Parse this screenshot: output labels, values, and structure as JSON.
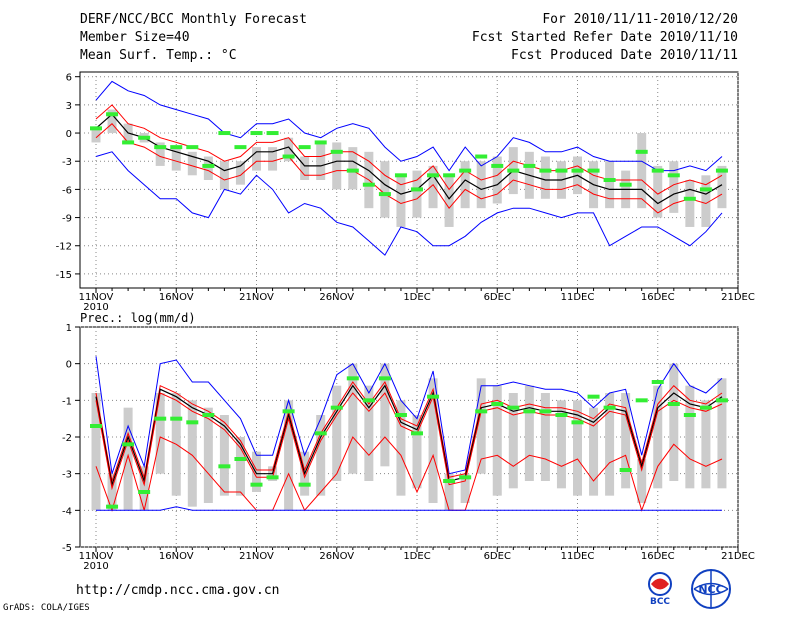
{
  "header": {
    "title": "DERF/NCC/BCC Monthly Forecast",
    "member_size": "Member Size=40",
    "variable": "Mean Surf. Temp.: °C",
    "period": "For 2010/11/11-2010/12/20",
    "started": "Fcst Started Refer Date 2010/11/10",
    "produced": "Fcst Produced Date 2010/11/11"
  },
  "footer": {
    "url": "http://cmdp.ncc.cma.gov.cn",
    "credit": "GrADS: COLA/IGES"
  },
  "logos": {
    "left_text": "BCC",
    "right_text": "NCC"
  },
  "colors": {
    "max": "#0000ff",
    "spread": "#ff0000",
    "mean": "#000000",
    "box": "#cccccc",
    "obs": "#33ee33",
    "grid": "#888888"
  },
  "chart_data": [
    {
      "type": "line",
      "title": "Mean Surf. Temp.: °C",
      "x": [
        0,
        1,
        2,
        3,
        4,
        5,
        6,
        7,
        8,
        9,
        10,
        11,
        12,
        13,
        14,
        15,
        16,
        17,
        18,
        19,
        20,
        21,
        22,
        23,
        24,
        25,
        26,
        27,
        28,
        29,
        30,
        31,
        32,
        33,
        34,
        35,
        36,
        37,
        38,
        39
      ],
      "xticks": [
        "11NOV",
        "16NOV",
        "21NOV",
        "26NOV",
        "1DEC",
        "6DEC",
        "11DEC",
        "16DEC",
        "21DEC"
      ],
      "xtick_sub": "2010",
      "yticks": [
        "6",
        "3",
        "0",
        "-3",
        "-6",
        "-9",
        "-12",
        "-15"
      ],
      "ylim": [
        -16.5,
        6.5
      ],
      "series": [
        {
          "name": "max",
          "values": [
            3.5,
            5.5,
            4.5,
            4,
            3,
            2.5,
            2,
            1.5,
            0,
            -0.5,
            1,
            1,
            1.5,
            0,
            -0.5,
            0.5,
            1,
            0.5,
            -1.5,
            -3,
            -2.5,
            -1.5,
            -4,
            -1.5,
            -3.5,
            -2.5,
            -0.5,
            -1,
            -2,
            -2,
            -1.5,
            -2.5,
            -3,
            -3,
            -3,
            -4,
            -4,
            -3.5,
            -4,
            -2.5
          ]
        },
        {
          "name": "upper",
          "values": [
            1.5,
            3,
            1,
            0.5,
            -0.5,
            -1,
            -1.5,
            -2,
            -3,
            -2.5,
            -1,
            -1,
            -0.5,
            -2.5,
            -2.5,
            -2,
            -2,
            -3,
            -4.5,
            -5.5,
            -5,
            -3.5,
            -6,
            -4,
            -5,
            -4.5,
            -3,
            -3.5,
            -4,
            -4,
            -3.5,
            -4.5,
            -5,
            -5,
            -5,
            -6.5,
            -5.5,
            -5,
            -5.5,
            -4.5
          ]
        },
        {
          "name": "mean",
          "values": [
            0.5,
            2,
            0,
            -0.5,
            -1.5,
            -2,
            -2.5,
            -3,
            -4,
            -3.5,
            -2,
            -2,
            -1.5,
            -3.5,
            -3.5,
            -3,
            -3,
            -4,
            -5.5,
            -6.5,
            -6,
            -4.5,
            -7,
            -5,
            -6,
            -5.5,
            -4,
            -4.5,
            -5,
            -5,
            -4.5,
            -5.5,
            -6,
            -6,
            -6,
            -7.5,
            -6.5,
            -6,
            -6.5,
            -5.5
          ]
        },
        {
          "name": "lower",
          "values": [
            -0.5,
            1,
            -1,
            -1.5,
            -2.5,
            -3,
            -3.5,
            -4,
            -5,
            -4.5,
            -3,
            -3,
            -2.5,
            -4.5,
            -4.5,
            -4,
            -4,
            -5,
            -6.5,
            -7.5,
            -7,
            -5.5,
            -8,
            -6,
            -7,
            -6.5,
            -5,
            -5.5,
            -6,
            -6,
            -5.5,
            -6.5,
            -7,
            -7,
            -7,
            -8.5,
            -7.5,
            -7,
            -7.5,
            -6.5
          ]
        },
        {
          "name": "min",
          "values": [
            -2.5,
            -2,
            -4,
            -5.5,
            -7,
            -7,
            -8.5,
            -9,
            -6,
            -6.5,
            -4.5,
            -6,
            -8.5,
            -7.5,
            -8,
            -9.5,
            -10,
            -11.5,
            -13,
            -10,
            -10.5,
            -12,
            -12,
            -11,
            -9.5,
            -8.5,
            -8,
            -8,
            -8.5,
            -9,
            -8.5,
            -8.5,
            -12,
            -11,
            -10,
            -10,
            -11,
            -12,
            -10.5,
            -8.5
          ]
        },
        {
          "name": "obs",
          "values": [
            0.5,
            2,
            -1,
            -0.5,
            -1.5,
            -1.5,
            -1.5,
            -3.5,
            0,
            -1.5,
            0,
            0,
            -2.5,
            -1.5,
            -1,
            -2,
            -4,
            -5.5,
            -6.5,
            -4.5,
            -6,
            -4.5,
            -4.5,
            -4,
            -2.5,
            -3.5,
            -4,
            -3.5,
            -4,
            -4,
            -4,
            -4,
            -5,
            -5.5,
            -2,
            -4,
            -4.5,
            -7,
            -6,
            -4
          ]
        }
      ],
      "box_range": [
        [
          -1,
          0.5
        ],
        [
          0,
          2.5
        ],
        [
          -1,
          1
        ],
        [
          -1,
          0
        ],
        [
          -3.5,
          -1
        ],
        [
          -4,
          -1.5
        ],
        [
          -4.5,
          -2
        ],
        [
          -5,
          -2.5
        ],
        [
          -6,
          -3
        ],
        [
          -5.5,
          -3
        ],
        [
          -4,
          -1.5
        ],
        [
          -4,
          -1.5
        ],
        [
          -3,
          -0.5
        ],
        [
          -5,
          -2.5
        ],
        [
          -5,
          -1
        ],
        [
          -6,
          -1
        ],
        [
          -6,
          -1.5
        ],
        [
          -8,
          -2
        ],
        [
          -9,
          -3
        ],
        [
          -10,
          -4.5
        ],
        [
          -9,
          -4
        ],
        [
          -8,
          -3.5
        ],
        [
          -10,
          -4.5
        ],
        [
          -8,
          -3
        ],
        [
          -8,
          -3
        ],
        [
          -7.5,
          -2.5
        ],
        [
          -6.5,
          -1.5
        ],
        [
          -7,
          -2
        ],
        [
          -7,
          -2.5
        ],
        [
          -7,
          -3
        ],
        [
          -6.5,
          -2.5
        ],
        [
          -8,
          -3
        ],
        [
          -8,
          -3
        ],
        [
          -8,
          -4
        ],
        [
          -8,
          0
        ],
        [
          -9,
          -3.5
        ],
        [
          -8.5,
          -3
        ],
        [
          -10,
          -5
        ],
        [
          -10,
          -4.5
        ],
        [
          -8,
          -3.5
        ]
      ]
    },
    {
      "type": "line",
      "title": "Prec.: log(mm/d)",
      "x": [
        0,
        1,
        2,
        3,
        4,
        5,
        6,
        7,
        8,
        9,
        10,
        11,
        12,
        13,
        14,
        15,
        16,
        17,
        18,
        19,
        20,
        21,
        22,
        23,
        24,
        25,
        26,
        27,
        28,
        29,
        30,
        31,
        32,
        33,
        34,
        35,
        36,
        37,
        38,
        39
      ],
      "xticks": [
        "11NOV",
        "16NOV",
        "21NOV",
        "26NOV",
        "1DEC",
        "6DEC",
        "11DEC",
        "16DEC",
        "21DEC"
      ],
      "xtick_sub": "2010",
      "yticks": [
        "1",
        "0",
        "-1",
        "-2",
        "-3",
        "-4",
        "-5"
      ],
      "ylim": [
        -5,
        1
      ],
      "series": [
        {
          "name": "max",
          "values": [
            0.2,
            -3,
            -1.7,
            -2.8,
            0,
            0.1,
            -0.5,
            -0.5,
            -1,
            -1.5,
            -2.5,
            -2.5,
            -1,
            -2.5,
            -1.5,
            -0.3,
            0,
            -0.8,
            0,
            -1,
            -1.5,
            -0.2,
            -3,
            -2.9,
            -0.6,
            -0.6,
            -0.5,
            -0.6,
            -0.7,
            -0.7,
            -0.8,
            -1.2,
            -0.8,
            -0.7,
            -2.5,
            -0.7,
            0,
            -0.6,
            -0.8,
            -0.4
          ]
        },
        {
          "name": "upper",
          "values": [
            -0.8,
            -3.2,
            -1.9,
            -3.1,
            -0.6,
            -0.8,
            -1.1,
            -1.3,
            -1.6,
            -2.1,
            -2.9,
            -2.9,
            -1.3,
            -2.9,
            -1.9,
            -1.2,
            -0.5,
            -1.1,
            -0.5,
            -1.5,
            -1.7,
            -0.7,
            -3.1,
            -3,
            -1.1,
            -1,
            -1.2,
            -1.1,
            -1.2,
            -1.2,
            -1.3,
            -1.5,
            -1.1,
            -1.2,
            -2.7,
            -1.1,
            -0.6,
            -1,
            -1.1,
            -0.8
          ]
        },
        {
          "name": "mean",
          "values": [
            -0.9,
            -3.3,
            -2,
            -3.2,
            -0.7,
            -0.9,
            -1.2,
            -1.4,
            -1.7,
            -2.2,
            -3,
            -3,
            -1.4,
            -3,
            -2,
            -1.3,
            -0.6,
            -1.2,
            -0.6,
            -1.6,
            -1.8,
            -0.8,
            -3.2,
            -3.1,
            -1.2,
            -1.1,
            -1.3,
            -1.2,
            -1.3,
            -1.3,
            -1.4,
            -1.6,
            -1.2,
            -1.3,
            -2.8,
            -1.2,
            -0.8,
            -1.1,
            -1.2,
            -0.9
          ]
        },
        {
          "name": "lower",
          "values": [
            -1,
            -3.4,
            -2.1,
            -3.3,
            -0.8,
            -1,
            -1.3,
            -1.5,
            -1.8,
            -2.3,
            -3.1,
            -3.1,
            -1.5,
            -3.1,
            -2.1,
            -1.4,
            -0.8,
            -1.3,
            -0.8,
            -1.7,
            -1.9,
            -0.9,
            -3.3,
            -3.2,
            -1.3,
            -1.2,
            -1.4,
            -1.3,
            -1.4,
            -1.4,
            -1.5,
            -1.7,
            -1.3,
            -1.4,
            -2.9,
            -1.3,
            -1,
            -1.2,
            -1.3,
            -1.1
          ]
        },
        {
          "name": "min2",
          "values": [
            -2.8,
            -4,
            -2.5,
            -4,
            -2,
            -2.2,
            -2.5,
            -3,
            -3.5,
            -3.5,
            -4,
            -4,
            -3,
            -4,
            -3.5,
            -3,
            -2,
            -2.5,
            -2,
            -2.5,
            -3.5,
            -2.5,
            -4,
            -4,
            -2.6,
            -2.5,
            -2.8,
            -2.5,
            -2.6,
            -2.8,
            -2.6,
            -3.2,
            -2.7,
            -2.5,
            -4,
            -2.8,
            -2.2,
            -2.6,
            -2.8,
            -2.6
          ]
        },
        {
          "name": "min",
          "values": [
            -4,
            -4,
            -4,
            -4,
            -4,
            -3.9,
            -4,
            -4,
            -4,
            -4,
            -4,
            -4,
            -4,
            -4,
            -4,
            -4,
            -4,
            -4,
            -4,
            -4,
            -4,
            -4,
            -4,
            -4,
            -4,
            -4,
            -4,
            -4,
            -4,
            -4,
            -4,
            -4,
            -4,
            -4,
            -4,
            -4,
            -4,
            -4,
            -4,
            -4
          ]
        },
        {
          "name": "obs",
          "values": [
            -1.7,
            -3.9,
            -2.2,
            -3.5,
            -1.5,
            -1.5,
            -1.6,
            -1.4,
            -2.8,
            -2.6,
            -3.3,
            -3.1,
            -1.3,
            -3.3,
            -1.9,
            -1.2,
            -0.4,
            -1,
            -0.4,
            -1.4,
            -1.9,
            -0.9,
            -3.2,
            -3.1,
            -1.3,
            -1.1,
            -1.2,
            -1.3,
            -1.3,
            -1.4,
            -1.6,
            -0.9,
            -1.2,
            -2.9,
            -1,
            -0.5,
            -1.1,
            -1.4,
            -1.2,
            -1
          ]
        }
      ],
      "box_range": [
        [
          -4,
          -0.8
        ],
        [
          -4,
          -3
        ],
        [
          -4,
          -1.2
        ],
        [
          -4,
          -2.8
        ],
        [
          -3,
          -0.8
        ],
        [
          -3.6,
          -0.8
        ],
        [
          -3.9,
          -1
        ],
        [
          -3.8,
          -1.2
        ],
        [
          -3.6,
          -1.4
        ],
        [
          -3.6,
          -2
        ],
        [
          -3.5,
          -2.4
        ],
        [
          -3.2,
          -2.8
        ],
        [
          -4,
          -1
        ],
        [
          -3.6,
          -2.4
        ],
        [
          -3.6,
          -1.4
        ],
        [
          -3.2,
          -0.6
        ],
        [
          -3,
          0
        ],
        [
          -3.2,
          -0.6
        ],
        [
          -2.8,
          0
        ],
        [
          -3.6,
          -1
        ],
        [
          -3.4,
          -1.4
        ],
        [
          -3.8,
          -0.4
        ],
        [
          -4,
          -3
        ],
        [
          -3.8,
          -3
        ],
        [
          -3,
          -0.4
        ],
        [
          -3.6,
          -0.6
        ],
        [
          -3.4,
          -0.8
        ],
        [
          -3.2,
          -0.6
        ],
        [
          -3.2,
          -0.8
        ],
        [
          -3.4,
          -1
        ],
        [
          -3.6,
          -1
        ],
        [
          -3.6,
          -1.2
        ],
        [
          -3.6,
          -0.8
        ],
        [
          -3.4,
          -0.8
        ],
        [
          -3.8,
          -2.6
        ],
        [
          -3.4,
          -0.6
        ],
        [
          -3.2,
          0
        ],
        [
          -3.4,
          -0.6
        ],
        [
          -3.4,
          -1
        ],
        [
          -3.4,
          -0.4
        ]
      ]
    }
  ]
}
